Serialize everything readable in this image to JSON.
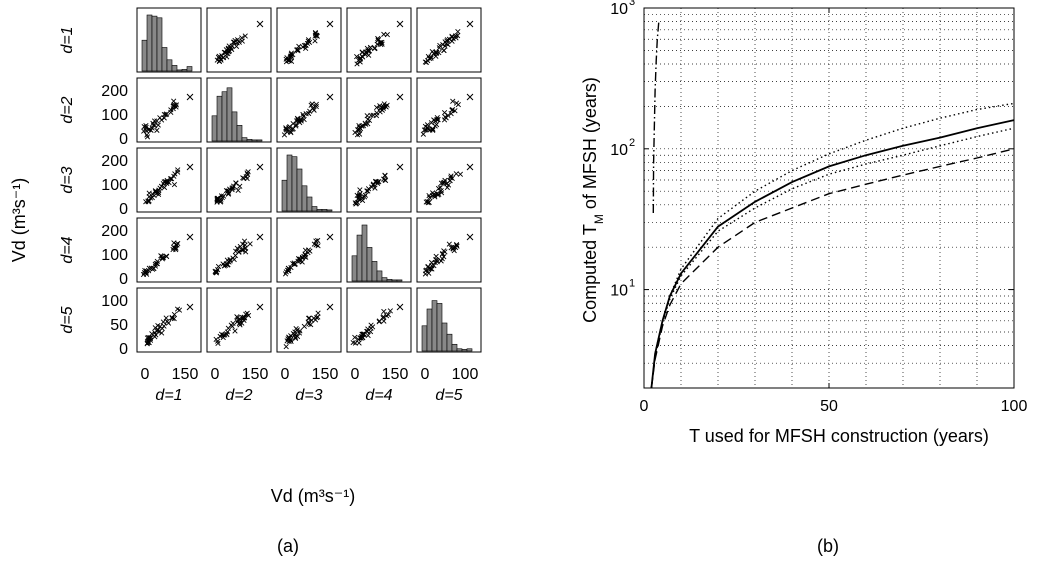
{
  "panel_a": {
    "label": "(a)",
    "xlabel": "Vd (m³s⁻¹)",
    "ylabel": "Vd (m³s⁻¹)",
    "variables": [
      "d=1",
      "d=2",
      "d=3",
      "d=4",
      "d=5"
    ],
    "y_ticks": [
      [],
      [
        "200",
        "100",
        "0"
      ],
      [
        "200",
        "100",
        "0"
      ],
      [
        "200",
        "100",
        "0"
      ],
      [
        "100",
        "50",
        "0"
      ]
    ],
    "x_ticks": [
      [
        "0",
        "150"
      ],
      [
        "0",
        "150"
      ],
      [
        "0",
        "150"
      ],
      [
        "0",
        "150"
      ],
      [
        "0",
        "100"
      ]
    ]
  },
  "panel_b": {
    "label": "(b)",
    "xlabel": "T used for MFSH construction (years)",
    "ylabel_main": "Computed T",
    "ylabel_sub": "M",
    "ylabel_rest": " of MFSH (years)",
    "x_ticks": [
      "0",
      "50",
      "100"
    ],
    "y_ticks": [
      {
        "base": "10",
        "exp": "1"
      },
      {
        "base": "10",
        "exp": "2"
      },
      {
        "base": "10",
        "exp": "3"
      }
    ]
  },
  "chart_data": [
    {
      "type": "scatter",
      "kind": "scatter-matrix",
      "variables": [
        "d=1",
        "d=2",
        "d=3",
        "d=4",
        "d=5"
      ],
      "units": "m^3 s^-1",
      "diagonal": "histogram",
      "off_diagonal": "pairwise scatter (x markers)",
      "axis_ranges": [
        [
          0,
          230
        ],
        [
          0,
          230
        ],
        [
          0,
          230
        ],
        [
          0,
          230
        ],
        [
          0,
          110
        ]
      ],
      "histograms": [
        {
          "variable": "d=1",
          "bins": [
            0,
            10,
            20,
            30,
            40,
            50,
            60,
            70,
            80,
            90
          ],
          "heights": [
            0.55,
            1.0,
            0.98,
            0.95,
            0.42,
            0.2,
            0.1,
            0.02,
            0.03,
            0.08
          ]
        },
        {
          "variable": "d=2",
          "bins": [
            0,
            10,
            20,
            30,
            40,
            50,
            60,
            70,
            80,
            90
          ],
          "heights": [
            0.45,
            0.8,
            0.88,
            0.95,
            0.52,
            0.28,
            0.06,
            0.03,
            0.02,
            0.02
          ]
        },
        {
          "variable": "d=3",
          "bins": [
            0,
            10,
            20,
            30,
            40,
            50,
            60,
            70,
            80,
            90
          ],
          "heights": [
            0.55,
            1.0,
            0.97,
            0.75,
            0.45,
            0.25,
            0.08,
            0.03,
            0.03,
            0.02
          ]
        },
        {
          "variable": "d=4",
          "bins": [
            0,
            10,
            20,
            30,
            40,
            50,
            60,
            70,
            80,
            90
          ],
          "heights": [
            0.45,
            0.82,
            1.0,
            0.6,
            0.35,
            0.18,
            0.06,
            0.03,
            0.02,
            0.02
          ]
        },
        {
          "variable": "d=5",
          "bins": [
            0,
            10,
            20,
            30,
            40,
            50,
            60,
            70,
            80,
            90
          ],
          "heights": [
            0.45,
            0.75,
            0.9,
            0.85,
            0.5,
            0.3,
            0.12,
            0.04,
            0.03,
            0.04
          ]
        }
      ]
    },
    {
      "type": "line",
      "xlabel": "T used for MFSH construction (years)",
      "ylabel": "Computed T_M of MFSH (years)",
      "xlim": [
        0,
        100
      ],
      "ylim": [
        2,
        1000
      ],
      "yscale": "log",
      "grid": "dotted",
      "series": [
        {
          "style": "solid",
          "x": [
            2,
            3,
            5,
            7,
            10,
            20,
            30,
            40,
            50,
            60,
            70,
            80,
            90,
            100
          ],
          "y": [
            2,
            3.5,
            6,
            9,
            13,
            28,
            42,
            58,
            75,
            90,
            105,
            120,
            140,
            160
          ]
        },
        {
          "style": "dashed",
          "x": [
            2,
            3,
            5,
            7,
            10,
            20,
            30,
            40,
            50,
            60,
            70,
            80,
            90,
            100
          ],
          "y": [
            2,
            3.2,
            5.5,
            7.8,
            11,
            20,
            30,
            38,
            48,
            56,
            65,
            75,
            86,
            100
          ]
        },
        {
          "style": "dotted",
          "x": [
            2,
            3,
            5,
            7,
            10,
            20,
            30,
            40,
            50,
            60,
            70,
            80,
            90,
            100
          ],
          "y": [
            2,
            3.5,
            6,
            9,
            14,
            32,
            50,
            70,
            92,
            115,
            140,
            165,
            190,
            210
          ]
        },
        {
          "style": "dotted",
          "x": [
            2,
            3,
            5,
            7,
            10,
            20,
            30,
            40,
            50,
            60,
            70,
            80,
            90,
            100
          ],
          "y": [
            2,
            3.3,
            5.8,
            8.6,
            12.5,
            26,
            38,
            52,
            66,
            78,
            90,
            105,
            122,
            140
          ]
        },
        {
          "style": "dashdot",
          "x": [
            2.5,
            2.6,
            2.8,
            3.0,
            3.3,
            3.6,
            4.0
          ],
          "y": [
            35,
            80,
            150,
            260,
            420,
            600,
            800
          ]
        }
      ]
    }
  ]
}
